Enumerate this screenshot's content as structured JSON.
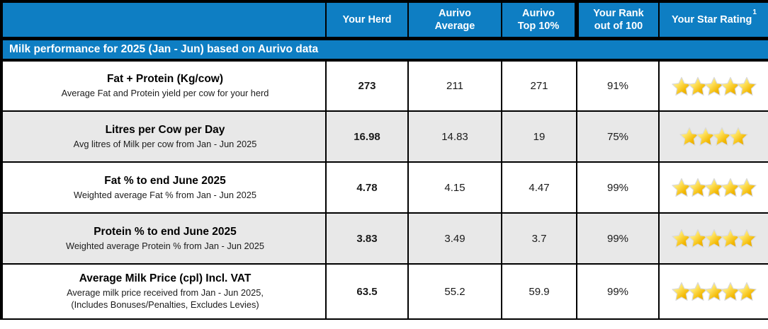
{
  "report": {
    "banner": "Milk performance for 2025 (Jan - Jun) based on Aurivo data",
    "header": {
      "blank": "",
      "your_herd": "Your Herd",
      "aurivo_average": "Aurivo\nAverage",
      "aurivo_top10": "Aurivo\nTop 10%",
      "your_rank": "Your Rank\nout of 100",
      "star_rating": "Your Star Rating",
      "star_rating_superscript": "1"
    },
    "colors": {
      "header_blue": "#0e7ec3",
      "alt_row_gray": "#e8e8e8",
      "border_black": "#000000",
      "star_gold": "#f3b800"
    },
    "rows": [
      {
        "metric": "Fat + Protein (Kg/cow)",
        "description": "Average Fat and Protein yield per cow for your herd",
        "your_herd": "273",
        "aurivo_average": "211",
        "aurivo_top10": "271",
        "rank": "91%",
        "stars": 5
      },
      {
        "metric": "Litres per Cow per Day",
        "description": "Avg litres of Milk per cow from Jan - Jun 2025",
        "your_herd": "16.98",
        "aurivo_average": "14.83",
        "aurivo_top10": "19",
        "rank": "75%",
        "stars": 4
      },
      {
        "metric": "Fat % to end June 2025",
        "description": "Weighted average Fat % from Jan - Jun 2025",
        "your_herd": "4.78",
        "aurivo_average": "4.15",
        "aurivo_top10": "4.47",
        "rank": "99%",
        "stars": 5
      },
      {
        "metric": "Protein % to end June 2025",
        "description": "Weighted average Protein % from Jan - Jun 2025",
        "your_herd": "3.83",
        "aurivo_average": "3.49",
        "aurivo_top10": "3.7",
        "rank": "99%",
        "stars": 5
      },
      {
        "metric": "Average Milk Price (cpl) Incl. VAT",
        "description": "Average milk price received from Jan - Jun 2025,\n(Includes Bonuses/Penalties, Excludes Levies)",
        "your_herd": "63.5",
        "aurivo_average": "55.2",
        "aurivo_top10": "59.9",
        "rank": "99%",
        "stars": 5
      }
    ]
  }
}
